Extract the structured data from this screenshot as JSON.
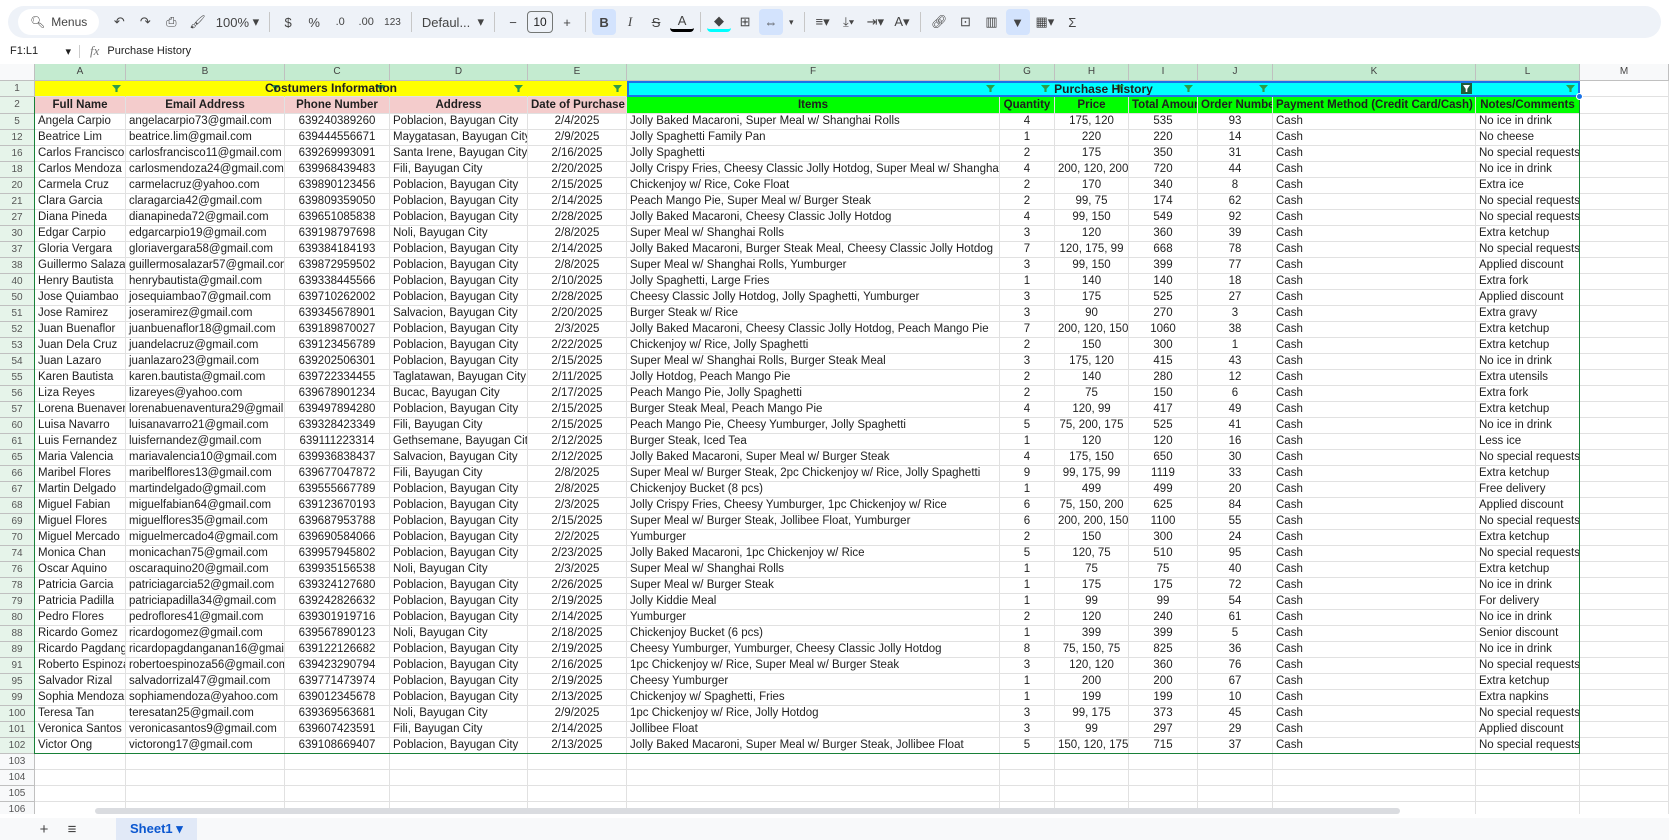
{
  "toolbar": {
    "menus_label": "Menus",
    "zoom": "100%",
    "currency": "$",
    "percent": "%",
    "decrease_decimal": ".0",
    "increase_decimal": ".00",
    "number_format": "123",
    "font": "Defaul...",
    "font_size": "10",
    "bold": "B",
    "italic": "I",
    "strike": "S",
    "text_color": "A",
    "sum": "Σ"
  },
  "formula_bar": {
    "name_box": "F1:L1",
    "fx": "fx",
    "content": "Purchase History"
  },
  "columns": [
    "A",
    "B",
    "C",
    "D",
    "E",
    "F",
    "G",
    "H",
    "I",
    "J",
    "K",
    "L",
    "M"
  ],
  "group_headers": {
    "customers": "Costumers Information",
    "purchase": "Purchase History"
  },
  "headers": [
    "Full Name",
    "Email Address",
    "Phone Number",
    "Address",
    "Date of Purchase",
    "Items",
    "Quantity",
    "Price",
    "Total Amount",
    "Order Number",
    "Payment Method (Credit Card/Cash)",
    "Notes/Comments"
  ],
  "colors": {
    "customers_header": "#ffff00",
    "customers_subheader": "#f4cccc",
    "purchase_header": "#00ffff",
    "purchase_subheader": "#00ff00"
  },
  "rows": [
    [
      "5",
      "Angela Carpio",
      "angelacarpio73@gmail.com",
      "639240389260",
      "Poblacion, Bayugan City",
      "2/4/2025",
      "Jolly Baked Macaroni, Super Meal w/ Shanghai Rolls",
      "4",
      "175, 120",
      "535",
      "93",
      "Cash",
      "No ice in drink"
    ],
    [
      "12",
      "Beatrice Lim",
      "beatrice.lim@gmail.com",
      "639444556671",
      "Maygatasan, Bayugan City",
      "2/9/2025",
      "Jolly Spaghetti Family Pan",
      "1",
      "220",
      "220",
      "14",
      "Cash",
      "No cheese"
    ],
    [
      "16",
      "Carlos Francisco",
      "carlosfrancisco11@gmail.com",
      "639269993091",
      "Santa Irene, Bayugan City",
      "2/16/2025",
      "Jolly Spaghetti",
      "2",
      "175",
      "350",
      "31",
      "Cash",
      "No special requests"
    ],
    [
      "18",
      "Carlos Mendoza",
      "carlosmendoza24@gmail.com",
      "639968439483",
      "Fili, Bayugan City",
      "2/20/2025",
      "Jolly Crispy Fries, Cheesy Classic Jolly Hotdog, Super Meal w/ Shanghai Rolls",
      "4",
      "200, 120, 200",
      "720",
      "44",
      "Cash",
      "No ice in drink"
    ],
    [
      "20",
      "Carmela Cruz",
      "carmelacruz@yahoo.com",
      "639890123456",
      "Poblacion, Bayugan City",
      "2/15/2025",
      "Chickenjoy w/ Rice, Coke Float",
      "2",
      "170",
      "340",
      "8",
      "Cash",
      "Extra ice"
    ],
    [
      "21",
      "Clara Garcia",
      "claragarcia42@gmail.com",
      "639809359050",
      "Poblacion, Bayugan City",
      "2/14/2025",
      "Peach Mango Pie, Super Meal w/ Burger Steak",
      "2",
      "99, 75",
      "174",
      "62",
      "Cash",
      "No special requests"
    ],
    [
      "27",
      "Diana Pineda",
      "dianapineda72@gmail.com",
      "639651085838",
      "Poblacion, Bayugan City",
      "2/28/2025",
      "Jolly Baked Macaroni, Cheesy Classic Jolly Hotdog",
      "4",
      "99, 150",
      "549",
      "92",
      "Cash",
      "No special requests"
    ],
    [
      "30",
      "Edgar Carpio",
      "edgarcarpio19@gmail.com",
      "639198797698",
      "Noli, Bayugan City",
      "2/8/2025",
      "Super Meal w/ Shanghai Rolls",
      "3",
      "120",
      "360",
      "39",
      "Cash",
      "Extra ketchup"
    ],
    [
      "37",
      "Gloria Vergara",
      "gloriavergara58@gmail.com",
      "639384184193",
      "Poblacion, Bayugan City",
      "2/14/2025",
      "Jolly Baked Macaroni, Burger Steak Meal, Cheesy Classic Jolly Hotdog",
      "7",
      "120, 175, 99",
      "668",
      "78",
      "Cash",
      "No special requests"
    ],
    [
      "38",
      "Guillermo Salazar",
      "guillermosalazar57@gmail.com",
      "639872959502",
      "Poblacion, Bayugan City",
      "2/8/2025",
      "Super Meal w/ Shanghai Rolls, Yumburger",
      "3",
      "99, 150",
      "399",
      "77",
      "Cash",
      "Applied discount"
    ],
    [
      "40",
      "Henry Bautista",
      "henrybautista@gmail.com",
      "639338445566",
      "Poblacion, Bayugan City",
      "2/10/2025",
      "Jolly Spaghetti, Large Fries",
      "1",
      "140",
      "140",
      "18",
      "Cash",
      "Extra fork"
    ],
    [
      "50",
      "Jose Quiambao",
      "josequiambao7@gmail.com",
      "639710262002",
      "Poblacion, Bayugan City",
      "2/28/2025",
      "Cheesy Classic Jolly Hotdog, Jolly Spaghetti, Yumburger",
      "3",
      "175",
      "525",
      "27",
      "Cash",
      "Applied discount"
    ],
    [
      "51",
      "Jose Ramirez",
      "joseramirez@gmail.com",
      "639345678901",
      "Salvacion, Bayugan City",
      "2/20/2025",
      "Burger Steak w/ Rice",
      "3",
      "90",
      "270",
      "3",
      "Cash",
      "Extra gravy"
    ],
    [
      "52",
      "Juan Buenaflor",
      "juanbuenaflor18@gmail.com",
      "639189870027",
      "Poblacion, Bayugan City",
      "2/3/2025",
      "Jolly Baked Macaroni, Cheesy Classic Jolly Hotdog, Peach Mango Pie",
      "7",
      "200, 120, 150",
      "1060",
      "38",
      "Cash",
      "Extra ketchup"
    ],
    [
      "53",
      "Juan Dela Cruz",
      "juandelacruz@gmail.com",
      "639123456789",
      "Poblacion, Bayugan City",
      "2/22/2025",
      "Chickenjoy w/ Rice, Jolly Spaghetti",
      "2",
      "150",
      "300",
      "1",
      "Cash",
      "Extra ketchup"
    ],
    [
      "54",
      "Juan Lazaro",
      "juanlazaro23@gmail.com",
      "639202506301",
      "Poblacion, Bayugan City",
      "2/15/2025",
      "Super Meal w/ Shanghai Rolls, Burger Steak Meal",
      "3",
      "175, 120",
      "415",
      "43",
      "Cash",
      "No ice in drink"
    ],
    [
      "55",
      "Karen Bautista",
      "karen.bautista@gmail.com",
      "639722334455",
      "Taglatawan, Bayugan City",
      "2/11/2025",
      "Jolly Hotdog, Peach Mango Pie",
      "2",
      "140",
      "280",
      "12",
      "Cash",
      "Extra utensils"
    ],
    [
      "56",
      "Liza Reyes",
      "lizareyes@yahoo.com",
      "639678901234",
      "Bucac, Bayugan City",
      "2/17/2025",
      "Peach Mango Pie, Jolly Spaghetti",
      "2",
      "75",
      "150",
      "6",
      "Cash",
      "Extra fork"
    ],
    [
      "57",
      "Lorena Buenaventura",
      "lorenabuenaventura29@gmail.com",
      "639497894280",
      "Poblacion, Bayugan City",
      "2/15/2025",
      "Burger Steak Meal, Peach Mango Pie",
      "4",
      "120, 99",
      "417",
      "49",
      "Cash",
      "Extra ketchup"
    ],
    [
      "60",
      "Luisa Navarro",
      "luisanavarro21@gmail.com",
      "639328423349",
      "Fili, Bayugan City",
      "2/15/2025",
      "Peach Mango Pie, Cheesy Yumburger, Jolly Spaghetti",
      "5",
      "75, 200, 175",
      "525",
      "41",
      "Cash",
      "No ice in drink"
    ],
    [
      "61",
      "Luis Fernandez",
      "luisfernandez@gmail.com",
      "639111223314",
      "Gethsemane, Bayugan City",
      "2/12/2025",
      "Burger Steak, Iced Tea",
      "1",
      "120",
      "120",
      "16",
      "Cash",
      "Less ice"
    ],
    [
      "65",
      "Maria Valencia",
      "mariavalencia10@gmail.com",
      "639936838437",
      "Salvacion, Bayugan City",
      "2/12/2025",
      "Jolly Baked Macaroni, Super Meal w/ Burger Steak",
      "4",
      "175, 150",
      "650",
      "30",
      "Cash",
      "No special requests"
    ],
    [
      "66",
      "Maribel Flores",
      "maribelflores13@gmail.com",
      "639677047872",
      "Fili, Bayugan City",
      "2/8/2025",
      "Super Meal w/ Burger Steak, 2pc Chickenjoy w/ Rice, Jolly Spaghetti",
      "9",
      "99, 175, 99",
      "1119",
      "33",
      "Cash",
      "Extra ketchup"
    ],
    [
      "67",
      "Martin Delgado",
      "martindelgado@gmail.com",
      "639555667789",
      "Poblacion, Bayugan City",
      "2/8/2025",
      "Chickenjoy Bucket (8 pcs)",
      "1",
      "499",
      "499",
      "20",
      "Cash",
      "Free delivery"
    ],
    [
      "68",
      "Miguel Fabian",
      "miguelfabian64@gmail.com",
      "639123670193",
      "Poblacion, Bayugan City",
      "2/3/2025",
      "Jolly Crispy Fries, Cheesy Yumburger, 1pc Chickenjoy w/ Rice",
      "6",
      "75, 150, 200",
      "625",
      "84",
      "Cash",
      "Applied discount"
    ],
    [
      "69",
      "Miguel Flores",
      "miguelflores35@gmail.com",
      "639687953788",
      "Poblacion, Bayugan City",
      "2/15/2025",
      "Super Meal w/ Burger Steak, Jollibee Float, Yumburger",
      "6",
      "200, 200, 150",
      "1100",
      "55",
      "Cash",
      "No special requests"
    ],
    [
      "70",
      "Miguel Mercado",
      "miguelmercado4@gmail.com",
      "639690584066",
      "Poblacion, Bayugan City",
      "2/2/2025",
      "Yumburger",
      "2",
      "150",
      "300",
      "24",
      "Cash",
      "Extra ketchup"
    ],
    [
      "74",
      "Monica Chan",
      "monicachan75@gmail.com",
      "639957945802",
      "Poblacion, Bayugan City",
      "2/23/2025",
      "Jolly Baked Macaroni, 1pc Chickenjoy w/ Rice",
      "5",
      "120, 75",
      "510",
      "95",
      "Cash",
      "No special requests"
    ],
    [
      "76",
      "Oscar Aquino",
      "oscaraquino20@gmail.com",
      "639935156538",
      "Noli, Bayugan City",
      "2/3/2025",
      "Super Meal w/ Shanghai Rolls",
      "1",
      "75",
      "75",
      "40",
      "Cash",
      "Extra ketchup"
    ],
    [
      "78",
      "Patricia Garcia",
      "patriciagarcia52@gmail.com",
      "639324127680",
      "Poblacion, Bayugan City",
      "2/26/2025",
      "Super Meal w/ Burger Steak",
      "1",
      "175",
      "175",
      "72",
      "Cash",
      "No ice in drink"
    ],
    [
      "79",
      "Patricia Padilla",
      "patriciapadilla34@gmail.com",
      "639242826632",
      "Poblacion, Bayugan City",
      "2/19/2025",
      "Jolly Kiddie Meal",
      "1",
      "99",
      "99",
      "54",
      "Cash",
      "For delivery"
    ],
    [
      "80",
      "Pedro Flores",
      "pedroflores41@gmail.com",
      "639301919716",
      "Poblacion, Bayugan City",
      "2/14/2025",
      "Yumburger",
      "2",
      "120",
      "240",
      "61",
      "Cash",
      "No ice in drink"
    ],
    [
      "88",
      "Ricardo Gomez",
      "ricardogomez@gmail.com",
      "639567890123",
      "Noli, Bayugan City",
      "2/18/2025",
      "Chickenjoy Bucket (6 pcs)",
      "1",
      "399",
      "399",
      "5",
      "Cash",
      "Senior discount"
    ],
    [
      "89",
      "Ricardo Pagdanganan",
      "ricardopagdanganan16@gmail.com",
      "639122126682",
      "Poblacion, Bayugan City",
      "2/19/2025",
      "Cheesy Yumburger, Yumburger, Cheesy Classic Jolly Hotdog",
      "8",
      "75, 150, 75",
      "825",
      "36",
      "Cash",
      "No ice in drink"
    ],
    [
      "91",
      "Roberto Espinoza",
      "robertoespinoza56@gmail.com",
      "639423290794",
      "Poblacion, Bayugan City",
      "2/16/2025",
      "1pc Chickenjoy w/ Rice, Super Meal w/ Burger Steak",
      "3",
      "120, 120",
      "360",
      "76",
      "Cash",
      "No special requests"
    ],
    [
      "95",
      "Salvador Rizal",
      "salvadorrizal47@gmail.com",
      "639771473974",
      "Poblacion, Bayugan City",
      "2/19/2025",
      "Cheesy Yumburger",
      "1",
      "200",
      "200",
      "67",
      "Cash",
      "Extra ketchup"
    ],
    [
      "99",
      "Sophia Mendoza",
      "sophiamendoza@yahoo.com",
      "639012345678",
      "Poblacion, Bayugan City",
      "2/13/2025",
      "Chickenjoy w/ Spaghetti, Fries",
      "1",
      "199",
      "199",
      "10",
      "Cash",
      "Extra napkins"
    ],
    [
      "100",
      "Teresa Tan",
      "teresatan25@gmail.com",
      "639369563681",
      "Noli, Bayugan City",
      "2/9/2025",
      "1pc Chickenjoy w/ Rice, Jolly Hotdog",
      "3",
      "99, 175",
      "373",
      "45",
      "Cash",
      "No special requests"
    ],
    [
      "101",
      "Veronica Santos",
      "veronicasantos9@gmail.com",
      "639607423591",
      "Fili, Bayugan City",
      "2/14/2025",
      "Jollibee Float",
      "3",
      "99",
      "297",
      "29",
      "Cash",
      "Applied discount"
    ],
    [
      "102",
      "Victor Ong",
      "victorong17@gmail.com",
      "639108669407",
      "Poblacion, Bayugan City",
      "2/13/2025",
      "Jolly Baked Macaroni, Super Meal w/ Burger Steak, Jollibee Float",
      "5",
      "150, 120, 175",
      "715",
      "37",
      "Cash",
      "No special requests"
    ]
  ],
  "empty_rows": [
    "103",
    "104",
    "105",
    "106"
  ],
  "sheet_tabs": [
    {
      "label": "Sheet1"
    }
  ]
}
